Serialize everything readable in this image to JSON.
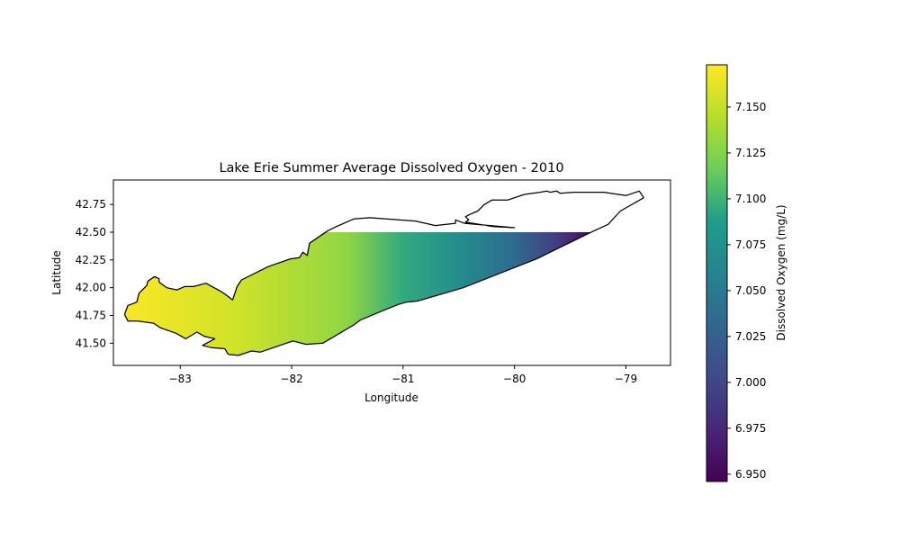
{
  "chart_data": {
    "type": "heatmap",
    "title": "Lake Erie Summer Average Dissolved Oxygen - 2010",
    "xlabel": "Longitude",
    "ylabel": "Latitude",
    "xlim": [
      -83.6,
      -78.6
    ],
    "ylim": [
      41.3,
      42.97
    ],
    "xticks": [
      -83,
      -82,
      -81,
      -80,
      -79
    ],
    "xtick_labels": [
      "−83",
      "−82",
      "−81",
      "−80",
      "−79"
    ],
    "yticks": [
      41.5,
      41.75,
      42.0,
      42.25,
      42.5,
      42.75
    ],
    "ytick_labels": [
      "41.50",
      "41.75",
      "42.00",
      "42.25",
      "42.50",
      "42.75"
    ],
    "colorbar": {
      "label": "Dissolved Oxygen (mg/L)",
      "colormap": "viridis",
      "range": [
        6.946,
        7.173
      ],
      "ticks": [
        6.95,
        6.975,
        7.0,
        7.025,
        7.05,
        7.075,
        7.1,
        7.125,
        7.15
      ],
      "tick_labels": [
        "6.950",
        "6.975",
        "7.000",
        "7.025",
        "7.050",
        "7.075",
        "7.100",
        "7.125",
        "7.150"
      ]
    },
    "field": {
      "description_of_gradient": "west-to-east",
      "points": [
        {
          "lon": -83.4,
          "value": 7.17
        },
        {
          "lon": -82.5,
          "value": 7.155
        },
        {
          "lon": -81.5,
          "value": 7.13
        },
        {
          "lon": -81.0,
          "value": 7.095
        },
        {
          "lon": -80.5,
          "value": 7.07
        },
        {
          "lon": -80.0,
          "value": 7.035
        },
        {
          "lon": -79.6,
          "value": 6.99
        },
        {
          "lon": -79.3,
          "value": 6.95
        }
      ],
      "data_lat_max": 42.5
    },
    "shoreline": [
      [
        -83.47,
        41.7
      ],
      [
        -83.38,
        41.7
      ],
      [
        -83.24,
        41.68
      ],
      [
        -83.18,
        41.64
      ],
      [
        -83.04,
        41.59
      ],
      [
        -82.95,
        41.54
      ],
      [
        -82.85,
        41.6
      ],
      [
        -82.78,
        41.56
      ],
      [
        -82.69,
        41.54
      ],
      [
        -82.8,
        41.48
      ],
      [
        -82.72,
        41.46
      ],
      [
        -82.6,
        41.45
      ],
      [
        -82.57,
        41.4
      ],
      [
        -82.48,
        41.39
      ],
      [
        -82.36,
        41.43
      ],
      [
        -82.28,
        41.42
      ],
      [
        -81.99,
        41.52
      ],
      [
        -81.87,
        41.49
      ],
      [
        -81.72,
        41.5
      ],
      [
        -81.45,
        41.66
      ],
      [
        -81.38,
        41.71
      ],
      [
        -81.19,
        41.79
      ],
      [
        -81.04,
        41.85
      ],
      [
        -80.97,
        41.87
      ],
      [
        -80.87,
        41.88
      ],
      [
        -80.46,
        42.0
      ],
      [
        -79.8,
        42.26
      ],
      [
        -79.7,
        42.31
      ],
      [
        -79.29,
        42.51
      ],
      [
        -79.16,
        42.57
      ],
      [
        -79.05,
        42.69
      ],
      [
        -78.84,
        42.81
      ],
      [
        -78.88,
        42.87
      ],
      [
        -79.0,
        42.83
      ],
      [
        -79.2,
        42.86
      ],
      [
        -79.46,
        42.86
      ],
      [
        -79.59,
        42.85
      ],
      [
        -79.62,
        42.87
      ],
      [
        -79.68,
        42.86
      ],
      [
        -79.71,
        42.87
      ],
      [
        -79.77,
        42.86
      ],
      [
        -79.91,
        42.84
      ],
      [
        -80.06,
        42.79
      ],
      [
        -80.2,
        42.79
      ],
      [
        -80.27,
        42.75
      ],
      [
        -80.33,
        42.69
      ],
      [
        -80.4,
        42.66
      ],
      [
        -80.44,
        42.64
      ],
      [
        -80.41,
        42.61
      ],
      [
        -80.44,
        42.59
      ],
      [
        -80.19,
        42.55
      ],
      [
        -80.0,
        42.54
      ],
      [
        -80.45,
        42.58
      ],
      [
        -80.53,
        42.61
      ],
      [
        -80.53,
        42.58
      ],
      [
        -80.71,
        42.56
      ],
      [
        -80.89,
        42.6
      ],
      [
        -81.15,
        42.62
      ],
      [
        -81.3,
        42.63
      ],
      [
        -81.44,
        42.62
      ],
      [
        -81.6,
        42.55
      ],
      [
        -81.68,
        42.51
      ],
      [
        -81.84,
        42.4
      ],
      [
        -81.86,
        42.29
      ],
      [
        -81.9,
        42.32
      ],
      [
        -81.93,
        42.27
      ],
      [
        -82.01,
        42.26
      ],
      [
        -82.21,
        42.19
      ],
      [
        -82.45,
        42.07
      ],
      [
        -82.49,
        42.01
      ],
      [
        -82.53,
        41.89
      ],
      [
        -82.61,
        41.95
      ],
      [
        -82.64,
        41.97
      ],
      [
        -82.77,
        42.04
      ],
      [
        -82.88,
        42.01
      ],
      [
        -82.96,
        42.01
      ],
      [
        -83.03,
        41.98
      ],
      [
        -83.12,
        42.0
      ],
      [
        -83.19,
        42.05
      ],
      [
        -83.19,
        42.08
      ],
      [
        -83.23,
        42.1
      ],
      [
        -83.29,
        42.06
      ],
      [
        -83.3,
        42.02
      ],
      [
        -83.37,
        41.95
      ],
      [
        -83.39,
        41.87
      ],
      [
        -83.47,
        41.84
      ],
      [
        -83.5,
        41.76
      ],
      [
        -83.47,
        41.7
      ]
    ]
  }
}
